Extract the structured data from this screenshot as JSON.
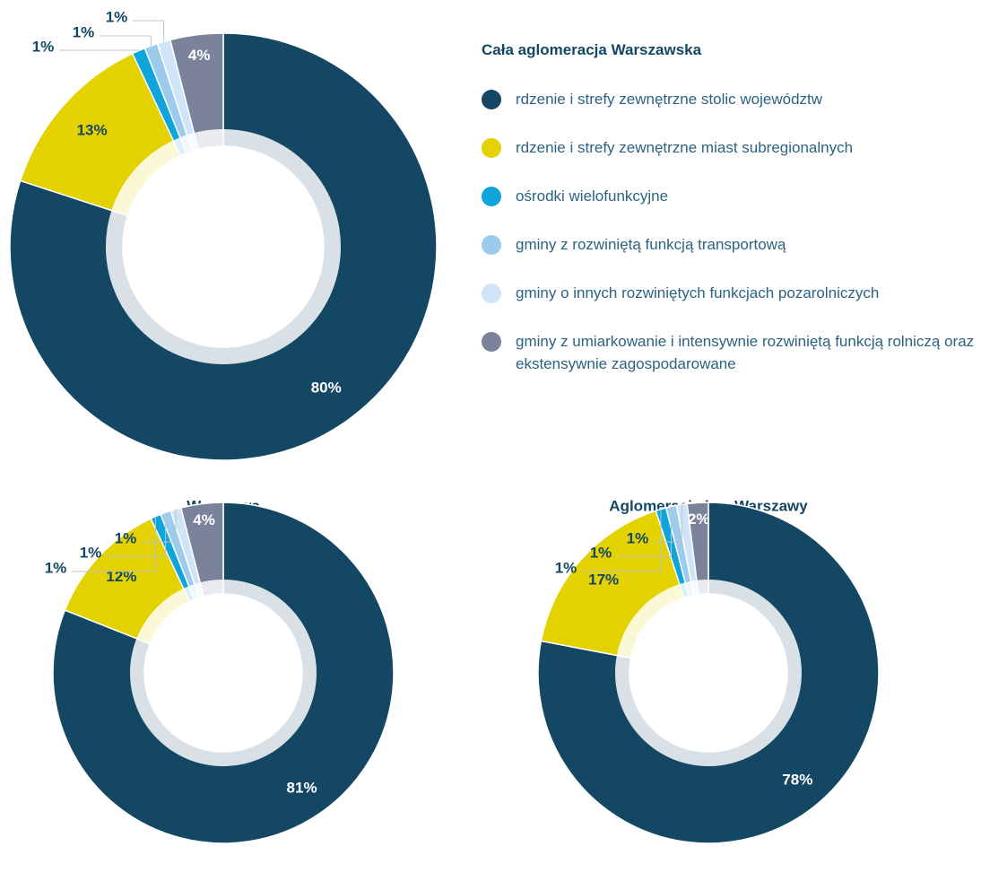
{
  "chart_data": [
    {
      "type": "pie",
      "title": "Cała aglomeracja Warszawska",
      "categories": [
        "rdzenie i strefy zewnętrzne stolic województw",
        "rdzenie i strefy zewnętrzne miast subregionalnych",
        "ośrodki wielofunkcyjne",
        "gminy z rozwiniętą funkcją transportową",
        "gminy o innych rozwiniętych funkcjach pozarolniczych",
        "gminy z umiarkowanie i intensywnie rozwiniętą funkcją rolniczą oraz ekstensywnie zagospodarowane"
      ],
      "values": [
        80,
        13,
        1,
        1,
        1,
        4
      ],
      "value_labels": [
        "80%",
        "13%",
        "1%",
        "1%",
        "1%",
        "4%"
      ],
      "colors": [
        "#134764",
        "#e3d200",
        "#0ea5dd",
        "#9ccbee",
        "#cfe4f7",
        "#7a8399"
      ]
    },
    {
      "type": "pie",
      "title": "Warszawa",
      "values": [
        81,
        12,
        1,
        1,
        1,
        4
      ],
      "value_labels": [
        "81%",
        "12%",
        "1%",
        "1%",
        "1%",
        "4%"
      ],
      "colors": [
        "#134764",
        "#e3d200",
        "#0ea5dd",
        "#9ccbee",
        "#cfe4f7",
        "#7a8399"
      ]
    },
    {
      "type": "pie",
      "title": "Aglomeracja bez Warszawy",
      "values": [
        78,
        17,
        1,
        1,
        1,
        2
      ],
      "value_labels": [
        "78%",
        "17%",
        "1%",
        "1%",
        "1%",
        "2%"
      ],
      "colors": [
        "#134764",
        "#e3d200",
        "#0ea5dd",
        "#9ccbee",
        "#cfe4f7",
        "#7a8399"
      ]
    }
  ]
}
